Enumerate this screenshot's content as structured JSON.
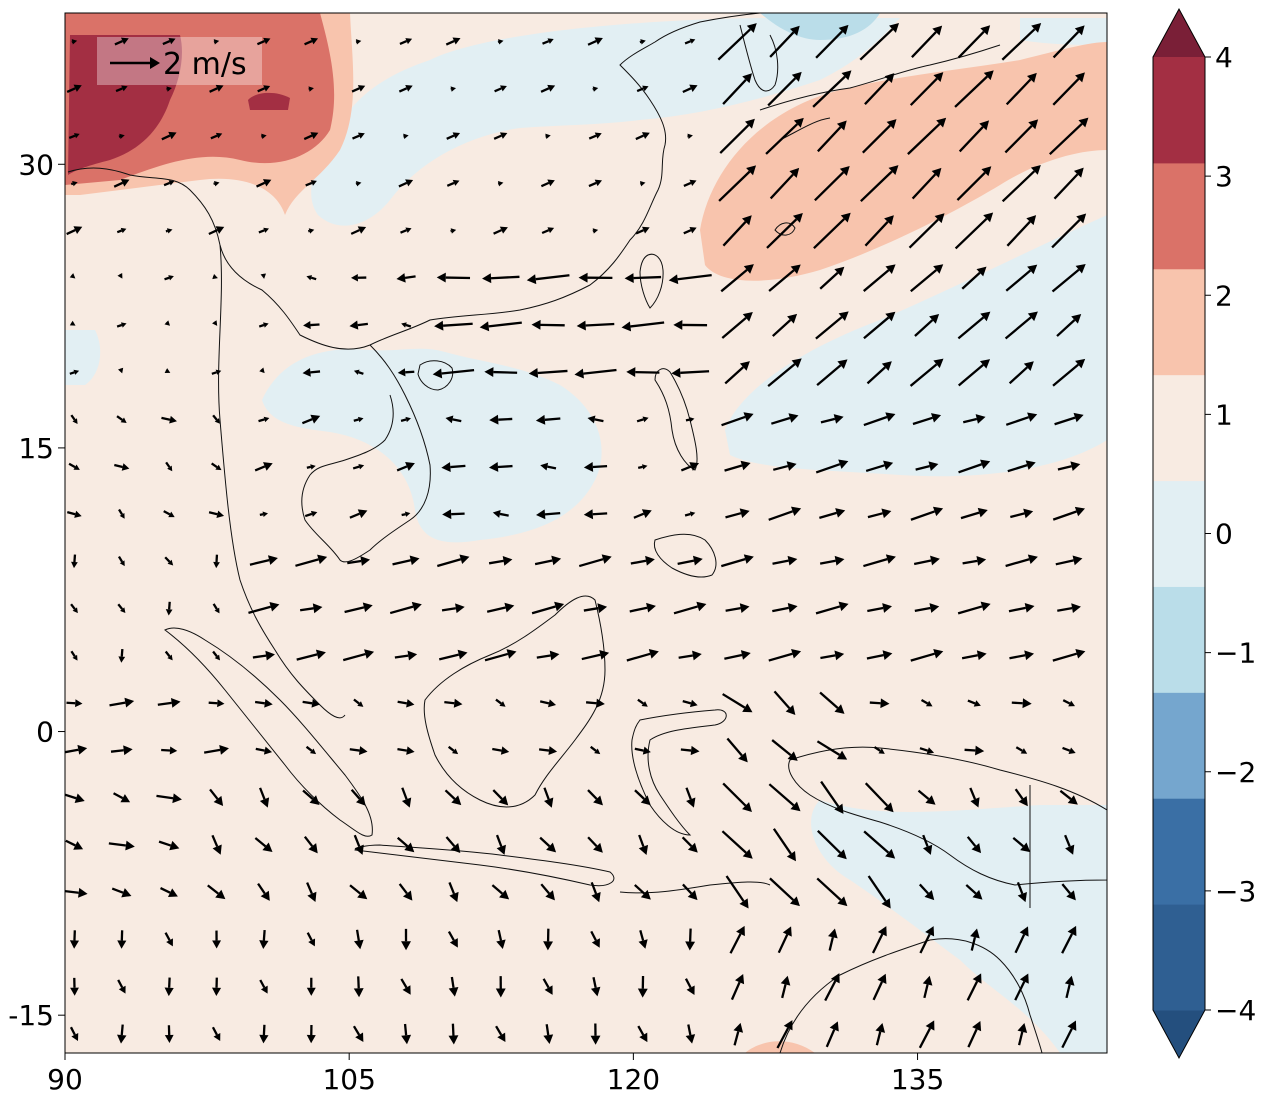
{
  "map": {
    "lon_range": [
      90,
      145
    ],
    "lat_range": [
      -17,
      38
    ],
    "x_ticks": [
      {
        "value": 90,
        "label": "90"
      },
      {
        "value": 105,
        "label": "105"
      },
      {
        "value": 120,
        "label": "120"
      },
      {
        "value": 135,
        "label": "135"
      }
    ],
    "y_ticks": [
      {
        "value": 30,
        "label": "30"
      },
      {
        "value": 15,
        "label": "15"
      },
      {
        "value": 0,
        "label": "0"
      },
      {
        "value": -15,
        "label": "-15"
      }
    ],
    "quiver_key": {
      "label": "2 m/s",
      "magnitude": 2
    }
  },
  "colorbar": {
    "levels": [
      -4,
      -3,
      -2,
      -1,
      0,
      1,
      2,
      3,
      4
    ],
    "labels": [
      "−4",
      "−3",
      "−2",
      "−1",
      "0",
      "1",
      "2",
      "3",
      "4"
    ],
    "colors": [
      "#2f5f92",
      "#3a6fa5",
      "#75a6ce",
      "#badde9",
      "#e2eff3",
      "#f8ebe2",
      "#f8c4ad",
      "#da7268",
      "#a32f43"
    ],
    "under_color": "#244f7e",
    "over_color": "#7a1f37"
  },
  "colors": {
    "land_outline": "#111111",
    "arrow": "#000000",
    "frame": "#000000"
  }
}
